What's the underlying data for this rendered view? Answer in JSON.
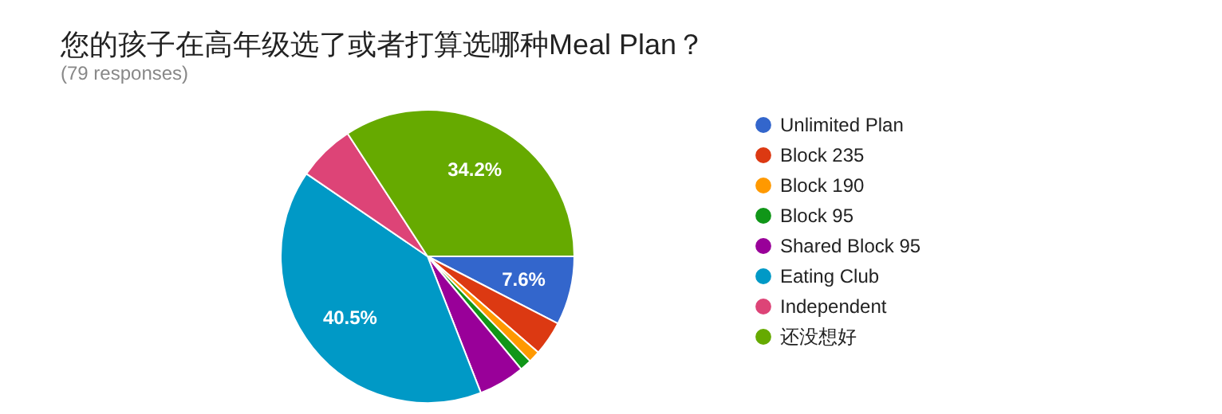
{
  "chart_data": {
    "type": "pie",
    "title": "您的孩子在高年级选了或者打算选哪种Meal Plan？",
    "subtitle": "(79 responses)",
    "categories": [
      "Unlimited Plan",
      "Block 235",
      "Block 190",
      "Block 95",
      "Shared Block 95",
      "Eating Club",
      "Independent",
      "还没想好"
    ],
    "values": [
      7.6,
      3.8,
      1.3,
      1.3,
      5.1,
      40.5,
      6.3,
      34.2
    ],
    "colors": [
      "#3366cc",
      "#dc3912",
      "#ff9900",
      "#109618",
      "#990099",
      "#0099c6",
      "#dd4477",
      "#66aa00"
    ],
    "value_labels": [
      "7.6%",
      null,
      null,
      null,
      null,
      "40.5%",
      null,
      "34.2%"
    ],
    "legend": "right"
  }
}
